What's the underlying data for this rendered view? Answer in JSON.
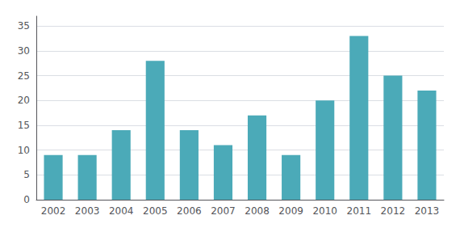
{
  "chart_data": {
    "type": "bar",
    "categories": [
      "2002",
      "2003",
      "2004",
      "2005",
      "2006",
      "2007",
      "2008",
      "2009",
      "2010",
      "2011",
      "2012",
      "2013"
    ],
    "values": [
      9,
      9,
      14,
      28,
      14,
      11,
      17,
      9,
      20,
      33,
      25,
      22
    ],
    "color": "#4baab8",
    "ylim": [
      0,
      37
    ],
    "yticks": [
      0,
      5,
      10,
      15,
      20,
      25,
      30,
      35
    ],
    "grid": true
  }
}
